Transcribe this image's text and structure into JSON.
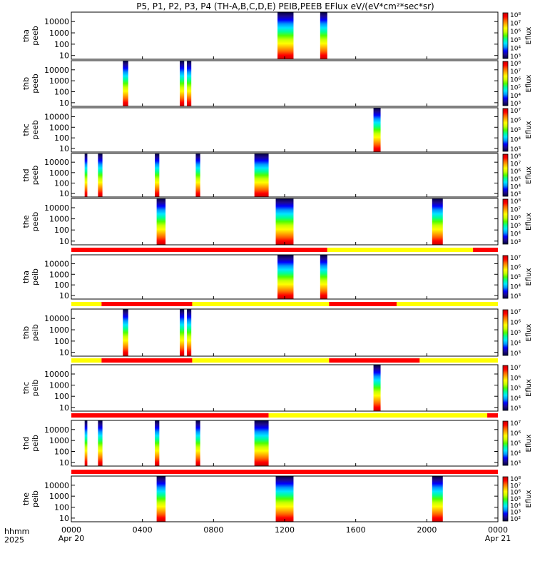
{
  "title": "P5, P1, P2, P3, P4 (TH-A,B,C,D,E) PEIB,PEEB EFlux eV/(eV*cm²*sec*sr)",
  "time_axis": {
    "label_line1": "hhmm",
    "label_line2": "2025",
    "ticks": [
      {
        "hour": 0,
        "label": "0000",
        "sub": "Apr 20"
      },
      {
        "hour": 4,
        "label": "0400",
        "sub": ""
      },
      {
        "hour": 8,
        "label": "0800",
        "sub": ""
      },
      {
        "hour": 12,
        "label": "1200",
        "sub": ""
      },
      {
        "hour": 16,
        "label": "1600",
        "sub": ""
      },
      {
        "hour": 20,
        "label": "2000",
        "sub": ""
      },
      {
        "hour": 24,
        "label": "0000",
        "sub": "Apr 21"
      }
    ],
    "range_hours": [
      0,
      24
    ]
  },
  "colors": {
    "mode_fast": "#ff0000",
    "mode_slow": "#ffff00",
    "spectrum": [
      "#000040",
      "#1e0a8c",
      "#0000ff",
      "#0096ff",
      "#00e6ff",
      "#00ff96",
      "#50ff00",
      "#c8ff00",
      "#ffff00",
      "#ffb400",
      "#ff6400",
      "#ff0000",
      "#c80000"
    ]
  },
  "chart_data": [
    {
      "type": "heatmap",
      "probe": "tha",
      "species": "peeb",
      "ylabel_line1": "tha",
      "ylabel_line2": "peeb",
      "yticks": [
        "10",
        "100",
        "1000",
        "10000"
      ],
      "yscale": "log",
      "colorbar": {
        "label": "Eflux",
        "ticks": [
          "10³",
          "10⁴",
          "10⁵",
          "10⁶",
          "10⁷",
          "10⁸"
        ]
      },
      "intervals": [
        [
          11.6,
          12.5
        ],
        [
          14.0,
          14.4
        ]
      ]
    },
    {
      "type": "heatmap",
      "probe": "thb",
      "species": "peeb",
      "ylabel_line1": "thb",
      "ylabel_line2": "peeb",
      "yticks": [
        "10",
        "100",
        "1000",
        "10000"
      ],
      "yscale": "log",
      "colorbar": {
        "label": "Eflux",
        "ticks": [
          "10³",
          "10⁴",
          "10⁵",
          "10⁶",
          "10⁷",
          "10⁸"
        ]
      },
      "intervals": [
        [
          2.9,
          3.2
        ],
        [
          6.1,
          6.35
        ],
        [
          6.5,
          6.75
        ]
      ]
    },
    {
      "type": "heatmap",
      "probe": "thc",
      "species": "peeb",
      "ylabel_line1": "thc",
      "ylabel_line2": "peeb",
      "yticks": [
        "10",
        "100",
        "1000",
        "10000"
      ],
      "yscale": "log",
      "colorbar": {
        "label": "Eflux",
        "ticks": [
          "10³",
          "10⁴",
          "10⁵",
          "10⁶",
          "10⁷"
        ]
      },
      "intervals": [
        [
          17.0,
          17.4
        ]
      ]
    },
    {
      "type": "heatmap",
      "probe": "thd",
      "species": "peeb",
      "ylabel_line1": "thd",
      "ylabel_line2": "peeb",
      "yticks": [
        "10",
        "100",
        "1000",
        "10000"
      ],
      "yscale": "log",
      "colorbar": {
        "label": "Eflux",
        "ticks": [
          "10³",
          "10⁴",
          "10⁵",
          "10⁶",
          "10⁷",
          "10⁸"
        ]
      },
      "intervals": [
        [
          0.75,
          0.9
        ],
        [
          1.5,
          1.75
        ],
        [
          4.7,
          4.95
        ],
        [
          7.0,
          7.25
        ],
        [
          10.3,
          11.1
        ]
      ]
    },
    {
      "type": "heatmap",
      "probe": "the",
      "species": "peeb",
      "ylabel_line1": "the",
      "ylabel_line2": "peeb",
      "yticks": [
        "10",
        "100",
        "1000",
        "10000"
      ],
      "yscale": "log",
      "colorbar": {
        "label": "Eflux",
        "ticks": [
          "10³",
          "10⁴",
          "10⁵",
          "10⁶",
          "10⁷",
          "10⁸"
        ]
      },
      "intervals": [
        [
          4.8,
          5.3
        ],
        [
          11.5,
          12.5
        ],
        [
          20.3,
          20.9
        ]
      ]
    },
    {
      "type": "heatmap",
      "probe": "tha",
      "species": "peib",
      "ylabel_line1": "tha",
      "ylabel_line2": "peib",
      "yticks": [
        "10",
        "100",
        "1000",
        "10000"
      ],
      "yscale": "log",
      "colorbar": {
        "label": "Eflux",
        "ticks": [
          "10³",
          "10⁴",
          "10⁵",
          "10⁶",
          "10⁷"
        ]
      },
      "mode_bar": [
        [
          0,
          14.4,
          "fast"
        ],
        [
          14.4,
          22.6,
          "slow"
        ],
        [
          22.6,
          24,
          "fast"
        ]
      ],
      "intervals": [
        [
          11.6,
          12.5
        ],
        [
          14.0,
          14.4
        ]
      ]
    },
    {
      "type": "heatmap",
      "probe": "thb",
      "species": "peib",
      "ylabel_line1": "thb",
      "ylabel_line2": "peib",
      "yticks": [
        "10",
        "100",
        "1000",
        "10000"
      ],
      "yscale": "log",
      "colorbar": {
        "label": "Eflux",
        "ticks": [
          "10³",
          "10⁴",
          "10⁵",
          "10⁶",
          "10⁷"
        ]
      },
      "mode_bar": [
        [
          0,
          1.7,
          "slow"
        ],
        [
          1.7,
          6.8,
          "fast"
        ],
        [
          6.8,
          14.5,
          "slow"
        ],
        [
          14.5,
          18.3,
          "fast"
        ],
        [
          18.3,
          24,
          "slow"
        ]
      ],
      "intervals": [
        [
          2.9,
          3.2
        ],
        [
          6.1,
          6.35
        ],
        [
          6.5,
          6.75
        ]
      ]
    },
    {
      "type": "heatmap",
      "probe": "thc",
      "species": "peib",
      "ylabel_line1": "thc",
      "ylabel_line2": "peib",
      "yticks": [
        "10",
        "100",
        "1000",
        "10000"
      ],
      "yscale": "log",
      "colorbar": {
        "label": "Eflux",
        "ticks": [
          "10³",
          "10⁴",
          "10⁵",
          "10⁶",
          "10⁷"
        ]
      },
      "mode_bar": [
        [
          0,
          1.7,
          "slow"
        ],
        [
          1.7,
          6.8,
          "fast"
        ],
        [
          6.8,
          14.5,
          "slow"
        ],
        [
          14.5,
          19.6,
          "fast"
        ],
        [
          19.6,
          24,
          "slow"
        ]
      ],
      "intervals": [
        [
          17.0,
          17.4
        ]
      ]
    },
    {
      "type": "heatmap",
      "probe": "thd",
      "species": "peib",
      "ylabel_line1": "thd",
      "ylabel_line2": "peib",
      "yticks": [
        "10",
        "100",
        "1000",
        "10000"
      ],
      "yscale": "log",
      "colorbar": {
        "label": "Eflux",
        "ticks": [
          "10³",
          "10⁴",
          "10⁵",
          "10⁶",
          "10⁷"
        ]
      },
      "mode_bar": [
        [
          0,
          11.1,
          "fast"
        ],
        [
          11.1,
          23.4,
          "slow"
        ],
        [
          23.4,
          24,
          "fast"
        ]
      ],
      "intervals": [
        [
          0.75,
          0.9
        ],
        [
          1.5,
          1.75
        ],
        [
          4.7,
          4.95
        ],
        [
          7.0,
          7.25
        ],
        [
          10.3,
          11.1
        ]
      ]
    },
    {
      "type": "heatmap",
      "probe": "the",
      "species": "peib",
      "ylabel_line1": "the",
      "ylabel_line2": "peib",
      "yticks": [
        "10",
        "100",
        "1000",
        "10000"
      ],
      "yscale": "log",
      "colorbar": {
        "label": "Eflux",
        "ticks": [
          "10²",
          "10³",
          "10⁴",
          "10⁵",
          "10⁶",
          "10⁷",
          "10⁸"
        ]
      },
      "mode_bar": [
        [
          0,
          24,
          "fast"
        ]
      ],
      "intervals": [
        [
          4.8,
          5.3
        ],
        [
          11.5,
          12.5
        ],
        [
          20.3,
          20.9
        ]
      ]
    }
  ]
}
